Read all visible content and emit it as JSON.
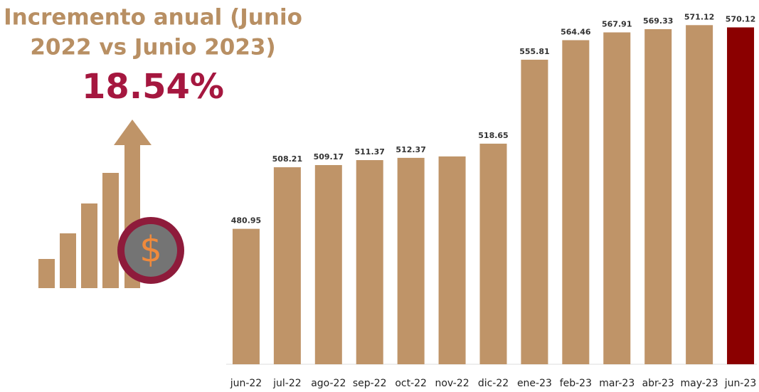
{
  "chart_data": {
    "type": "bar",
    "title": [
      "Incremento anual (Junio",
      "2022 vs Junio 2023)"
    ],
    "headline": "18.54%",
    "icon_symbol": "$",
    "categories": [
      "jun-22",
      "jul-22",
      "ago-22",
      "sep-22",
      "oct-22",
      "nov-22",
      "dic-22",
      "ene-23",
      "feb-23",
      "mar-23",
      "abr-23",
      "may-23",
      "jun-23"
    ],
    "values": [
      480.95,
      508.21,
      509.17,
      511.37,
      512.37,
      513,
      518.65,
      555.81,
      564.46,
      567.91,
      569.33,
      571.12,
      570.12
    ],
    "value_labels": [
      "480.95",
      "508.21",
      "509.17",
      "511.37",
      "512.37",
      null,
      "518.65",
      "555.81",
      "564.46",
      "567.91",
      "569.33",
      "571.12",
      "570.12"
    ],
    "colors": [
      "#bf9468",
      "#bf9468",
      "#bf9468",
      "#bf9468",
      "#bf9468",
      "#bf9468",
      "#bf9468",
      "#bf9468",
      "#bf9468",
      "#bf9468",
      "#bf9468",
      "#bf9468",
      "#8b0000"
    ],
    "ylim": [
      421,
      575
    ]
  }
}
